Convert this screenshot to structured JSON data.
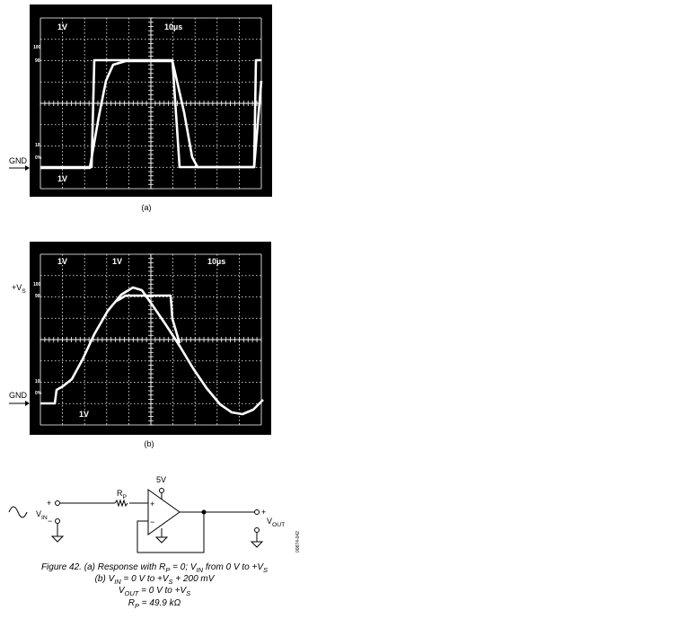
{
  "scope_a": {
    "ch1_label": "1V",
    "time_label": "10µs",
    "ch2_label": "1V",
    "levels": [
      "100",
      "90",
      "10",
      "0%"
    ],
    "gnd_label": "GND",
    "panel_label": "(a)"
  },
  "scope_b": {
    "ch1_label": "1V",
    "ch2_label": "1V",
    "time_label": "10µs",
    "ch3_label": "1V",
    "levels": [
      "100",
      "90",
      "10",
      "0%"
    ],
    "vs_label": [
      "+V",
      "S"
    ],
    "gnd_label": "GND",
    "panel_label": "(b)"
  },
  "circuit": {
    "plus_in": "+",
    "minus_in": "−",
    "vin_label": [
      "V",
      "IN"
    ],
    "rp_label": [
      "R",
      "P"
    ],
    "plus_amp": "+",
    "minus_amp": "−",
    "supply": "5V",
    "plus_out": "+",
    "vout_label": [
      "V",
      "OUT"
    ],
    "code": "00874-042"
  },
  "caption": [
    [
      "Figure 42. (a) Response with R",
      "P",
      " = 0; V",
      "IN",
      " from 0 V to +V",
      "S"
    ],
    [
      "(b) V",
      "IN",
      " = 0 V to +V",
      "S",
      " + 200 mV"
    ],
    [
      "V",
      "OUT",
      " = 0 V to +V",
      "S"
    ],
    [
      "R",
      "P",
      " = 49.9 kΩ"
    ]
  ]
}
